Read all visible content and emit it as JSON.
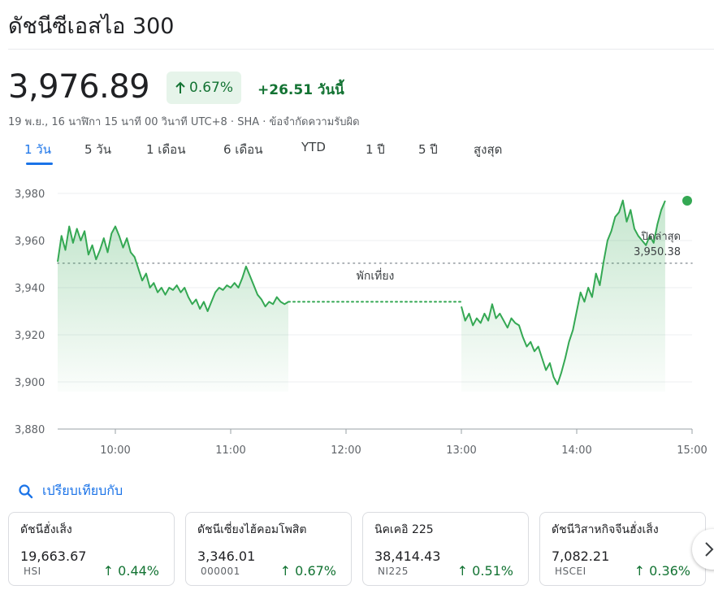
{
  "header": {
    "title": "ดัชนีซีเอสไอ 300",
    "price": "3,976.89",
    "pct_change": "0.67%",
    "abs_change": "+26.51 วันนี้",
    "meta": "19 พ.ย., 16 นาฬิกา 15 นาที 00 วินาที UTC+8 · SHA · ข้อจำกัดความรับผิด"
  },
  "tabs": [
    "1 วัน",
    "5 วัน",
    "1 เดือน",
    "6 เดือน",
    "YTD",
    "1 ปี",
    "5 ปี",
    "สูงสุด"
  ],
  "active_tab": 0,
  "chart_data": {
    "type": "area",
    "y_ticks": [
      "3,980",
      "3,960",
      "3,940",
      "3,920",
      "3,900",
      "3,880"
    ],
    "x_ticks": [
      "10:00",
      "11:00",
      "12:00",
      "13:00",
      "14:00",
      "15:00"
    ],
    "ylim": [
      3880,
      3980
    ],
    "xlim": [
      "09:30",
      "15:00"
    ],
    "prev_close": {
      "label": "ปิดล่าสุด",
      "value_label": "3,950.38",
      "value": 3950.38
    },
    "break_label": "พักเที่ยง",
    "break": [
      "11:30",
      "13:00"
    ],
    "line_color": "#34a853",
    "morning": [
      [
        "09:30",
        3951
      ],
      [
        "09:32",
        3962
      ],
      [
        "09:34",
        3956
      ],
      [
        "09:36",
        3966
      ],
      [
        "09:38",
        3959
      ],
      [
        "09:40",
        3965
      ],
      [
        "09:42",
        3960
      ],
      [
        "09:44",
        3964
      ],
      [
        "09:46",
        3954
      ],
      [
        "09:48",
        3958
      ],
      [
        "09:50",
        3952
      ],
      [
        "09:52",
        3956
      ],
      [
        "09:54",
        3961
      ],
      [
        "09:56",
        3955
      ],
      [
        "09:58",
        3963
      ],
      [
        "10:00",
        3966
      ],
      [
        "10:02",
        3962
      ],
      [
        "10:04",
        3957
      ],
      [
        "10:06",
        3961
      ],
      [
        "10:08",
        3955
      ],
      [
        "10:10",
        3953
      ],
      [
        "10:12",
        3948
      ],
      [
        "10:14",
        3943
      ],
      [
        "10:16",
        3946
      ],
      [
        "10:18",
        3940
      ],
      [
        "10:20",
        3942
      ],
      [
        "10:22",
        3938
      ],
      [
        "10:24",
        3940
      ],
      [
        "10:26",
        3937
      ],
      [
        "10:28",
        3940
      ],
      [
        "10:30",
        3939
      ],
      [
        "10:32",
        3941
      ],
      [
        "10:34",
        3938
      ],
      [
        "10:36",
        3940
      ],
      [
        "10:38",
        3936
      ],
      [
        "10:40",
        3933
      ],
      [
        "10:42",
        3935
      ],
      [
        "10:44",
        3931
      ],
      [
        "10:46",
        3934
      ],
      [
        "10:48",
        3930
      ],
      [
        "10:50",
        3934
      ],
      [
        "10:52",
        3938
      ],
      [
        "10:54",
        3940
      ],
      [
        "10:56",
        3939
      ],
      [
        "10:58",
        3941
      ],
      [
        "11:00",
        3940
      ],
      [
        "11:02",
        3942
      ],
      [
        "11:04",
        3940
      ],
      [
        "11:06",
        3944
      ],
      [
        "11:08",
        3949
      ],
      [
        "11:10",
        3945
      ],
      [
        "11:12",
        3941
      ],
      [
        "11:14",
        3937
      ],
      [
        "11:16",
        3935
      ],
      [
        "11:18",
        3932
      ],
      [
        "11:20",
        3934
      ],
      [
        "11:22",
        3933
      ],
      [
        "11:24",
        3936
      ],
      [
        "11:26",
        3934
      ],
      [
        "11:28",
        3933
      ],
      [
        "11:30",
        3934
      ]
    ],
    "afternoon": [
      [
        "13:00",
        3932
      ],
      [
        "13:02",
        3926
      ],
      [
        "13:04",
        3929
      ],
      [
        "13:06",
        3924
      ],
      [
        "13:08",
        3927
      ],
      [
        "13:10",
        3925
      ],
      [
        "13:12",
        3929
      ],
      [
        "13:14",
        3926
      ],
      [
        "13:16",
        3933
      ],
      [
        "13:18",
        3927
      ],
      [
        "13:20",
        3929
      ],
      [
        "13:22",
        3926
      ],
      [
        "13:24",
        3923
      ],
      [
        "13:26",
        3927
      ],
      [
        "13:28",
        3925
      ],
      [
        "13:30",
        3924
      ],
      [
        "13:32",
        3919
      ],
      [
        "13:34",
        3915
      ],
      [
        "13:36",
        3917
      ],
      [
        "13:38",
        3913
      ],
      [
        "13:40",
        3915
      ],
      [
        "13:42",
        3910
      ],
      [
        "13:44",
        3905
      ],
      [
        "13:46",
        3908
      ],
      [
        "13:48",
        3902
      ],
      [
        "13:50",
        3899
      ],
      [
        "13:52",
        3904
      ],
      [
        "13:54",
        3910
      ],
      [
        "13:56",
        3917
      ],
      [
        "13:58",
        3922
      ],
      [
        "14:00",
        3930
      ],
      [
        "14:02",
        3938
      ],
      [
        "14:04",
        3934
      ],
      [
        "14:06",
        3940
      ],
      [
        "14:08",
        3936
      ],
      [
        "14:10",
        3946
      ],
      [
        "14:12",
        3941
      ],
      [
        "14:14",
        3951
      ],
      [
        "14:16",
        3960
      ],
      [
        "14:18",
        3964
      ],
      [
        "14:20",
        3970
      ],
      [
        "14:22",
        3972
      ],
      [
        "14:24",
        3977
      ],
      [
        "14:26",
        3968
      ],
      [
        "14:28",
        3973
      ],
      [
        "14:30",
        3965
      ],
      [
        "14:32",
        3962
      ],
      [
        "14:34",
        3960
      ],
      [
        "14:36",
        3958
      ],
      [
        "14:38",
        3962
      ],
      [
        "14:40",
        3959
      ],
      [
        "14:42",
        3967
      ],
      [
        "14:44",
        3973
      ],
      [
        "14:46",
        3976.89
      ]
    ]
  },
  "compare": {
    "label": "เปรียบเทียบกับ"
  },
  "cards": [
    {
      "name": "ดัชนีฮั่งเส็ง",
      "value": "19,663.67",
      "symbol": "HSI",
      "pct": "0.44%"
    },
    {
      "name": "ดัชนีเซี่ยงไฮ้คอมโพสิต",
      "value": "3,346.01",
      "symbol": "000001",
      "pct": "0.67%"
    },
    {
      "name": "นิคเคอิ 225",
      "value": "38,414.43",
      "symbol": "NI225",
      "pct": "0.51%"
    },
    {
      "name": "ดัชนีวิสาหกิจจีนฮั่งเส็ง",
      "value": "7,082.21",
      "symbol": "HSCEI",
      "pct": "0.36%"
    }
  ],
  "colors": {
    "accent": "#1a73e8",
    "positive": "#137333",
    "positive_bg": "#e6f4ea"
  },
  "icons": {
    "search": "search-icon",
    "up_arrow": "arrow-up-icon",
    "next": "chevron-right-icon"
  }
}
